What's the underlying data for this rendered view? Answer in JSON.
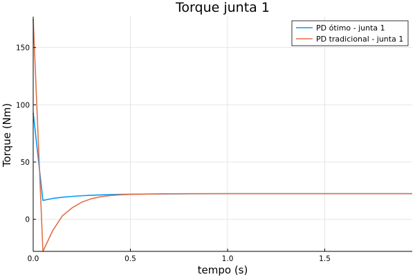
{
  "chart_data": {
    "type": "line",
    "title": "Torque junta 1",
    "xlabel": "tempo (s)",
    "ylabel": "Torque (Nm)",
    "xlim": [
      0,
      1.95
    ],
    "ylim": [
      -28,
      177
    ],
    "xticks": [
      0.0,
      0.5,
      1.0,
      1.5
    ],
    "xtick_labels": [
      "0.0",
      "0.5",
      "1.0",
      "1.5"
    ],
    "yticks": [
      0,
      50,
      100,
      150
    ],
    "ytick_labels": [
      "0",
      "50",
      "100",
      "150"
    ],
    "grid": true,
    "legend_position": "top-right",
    "series": [
      {
        "name": "PD ótimo - junta 1",
        "color": "#009af9",
        "x": [
          0,
          0.05,
          0.1,
          0.15,
          0.2,
          0.25,
          0.3,
          0.35,
          0.4,
          0.45,
          0.5,
          0.6,
          0.7,
          0.8,
          1.0,
          1.2,
          1.5,
          1.95
        ],
        "y": [
          93,
          16.5,
          18.2,
          19.3,
          20.0,
          20.6,
          21.0,
          21.3,
          21.6,
          21.8,
          21.9,
          22.1,
          22.2,
          22.3,
          22.4,
          22.4,
          22.4,
          22.4
        ]
      },
      {
        "name": "PD tradicional - junta 1",
        "color": "#e26f46",
        "x": [
          0,
          0.05,
          0.1,
          0.15,
          0.2,
          0.25,
          0.3,
          0.35,
          0.4,
          0.45,
          0.5,
          0.6,
          0.7,
          0.8,
          1.0,
          1.2,
          1.5,
          1.95
        ],
        "y": [
          175,
          -28,
          -10,
          3,
          10,
          15,
          18,
          19.8,
          20.8,
          21.4,
          21.8,
          22.1,
          22.3,
          22.4,
          22.4,
          22.4,
          22.4,
          22.4
        ]
      }
    ]
  }
}
